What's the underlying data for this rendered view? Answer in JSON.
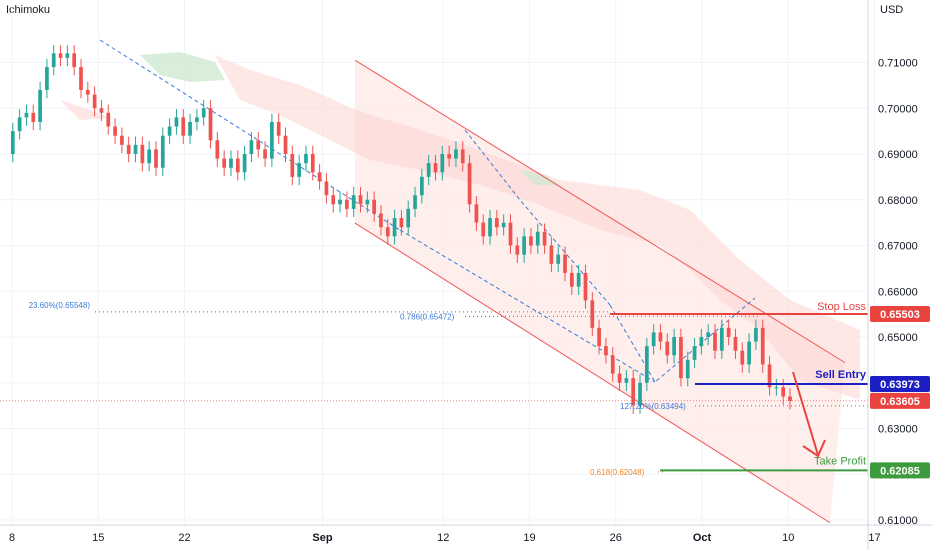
{
  "header": {
    "indicator": "Ichimoku",
    "currency": "USD"
  },
  "chart_data": {
    "type": "candlestick",
    "instrument_note": "",
    "y_axis": {
      "min": 0.605,
      "max": 0.714,
      "ticks": [
        0.61,
        0.62,
        0.63,
        0.64,
        0.65,
        0.66,
        0.67,
        0.68,
        0.69,
        0.7,
        0.71
      ],
      "tick_labels": [
        "0.61000",
        "0.62000",
        "0.63000",
        "0.64000",
        "0.65000",
        "0.66000",
        "0.67000",
        "0.68000",
        "0.69000",
        "0.70000",
        "0.71000"
      ]
    },
    "x_axis": {
      "ticks": [
        {
          "label": "8",
          "index": 0,
          "bold": false
        },
        {
          "label": "15",
          "index": 5,
          "bold": false
        },
        {
          "label": "22",
          "index": 10,
          "bold": false
        },
        {
          "label": "Sep",
          "index": 18,
          "bold": true
        },
        {
          "label": "12",
          "index": 25,
          "bold": false
        },
        {
          "label": "19",
          "index": 30,
          "bold": false
        },
        {
          "label": "26",
          "index": 35,
          "bold": false
        },
        {
          "label": "Oct",
          "index": 40,
          "bold": true
        },
        {
          "label": "10",
          "index": 45,
          "bold": false
        },
        {
          "label": "17",
          "index": 50,
          "bold": false
        }
      ]
    },
    "price_path": [
      0.69,
      0.695,
      0.698,
      0.699,
      0.697,
      0.704,
      0.709,
      0.712,
      0.711,
      0.712,
      0.709,
      0.704,
      0.703,
      0.7,
      0.699,
      0.696,
      0.694,
      0.692,
      0.69,
      0.692,
      0.688,
      0.691,
      0.687,
      0.694,
      0.696,
      0.698,
      0.694,
      0.697,
      0.698,
      0.7,
      0.693,
      0.689,
      0.687,
      0.689,
      0.686,
      0.69,
      0.693,
      0.691,
      0.689,
      0.697,
      0.694,
      0.69,
      0.685,
      0.688,
      0.69,
      0.686,
      0.684,
      0.681,
      0.679,
      0.68,
      0.678,
      0.681,
      0.679,
      0.68,
      0.677,
      0.674,
      0.672,
      0.676,
      0.674,
      0.678,
      0.681,
      0.685,
      0.688,
      0.686,
      0.69,
      0.689,
      0.691,
      0.688,
      0.679,
      0.675,
      0.672,
      0.676,
      0.674,
      0.675,
      0.67,
      0.668,
      0.672,
      0.67,
      0.673,
      0.67,
      0.666,
      0.668,
      0.664,
      0.661,
      0.664,
      0.658,
      0.652,
      0.648,
      0.646,
      0.642,
      0.64,
      0.641,
      0.635,
      0.64,
      0.648,
      0.651,
      0.649,
      0.646,
      0.65,
      0.641,
      0.645,
      0.648,
      0.65,
      0.651,
      0.647,
      0.652,
      0.65,
      0.647,
      0.644,
      0.649,
      0.652,
      0.644,
      0.639,
      0.639,
      0.637,
      0.636
    ],
    "channel": {
      "upper": [
        [
          27,
          0.7105
        ],
        [
          52,
          0.6444
        ]
      ],
      "lower": [
        [
          27,
          0.6749
        ],
        [
          52,
          0.6094
        ]
      ]
    },
    "horizontal_levels": [
      {
        "name": "Stop Loss",
        "value": 0.65503,
        "label": "0.65503",
        "color": "#e8433f"
      },
      {
        "name": "Sell Entry",
        "value": 0.63973,
        "label": "0.63973",
        "color": "#1c1fc4"
      },
      {
        "name": "Take Profit",
        "value": 0.62085,
        "label": "0.62085",
        "color": "#3d9a3d"
      },
      {
        "name": "",
        "value": 0.63605,
        "label": "0.63605",
        "color": "#e8433f"
      }
    ],
    "fib_labels": [
      {
        "text": "23.60%(0.65548)",
        "value": 0.65548,
        "color": "#3a7bd5"
      },
      {
        "text": "0.786(0.65472)",
        "value": 0.65472,
        "color": "#3a7bd5"
      },
      {
        "text": "127.20%(0.63494)",
        "value": 0.63494,
        "color": "#3a7bd5"
      },
      {
        "text": "0.618(0.62048)",
        "value": 0.62048,
        "color": "#f0882c"
      }
    ],
    "colors": {
      "up": "#26a69a",
      "down": "#ef5350",
      "channel": "#f05a5a",
      "channel_fill": "#fde7e4",
      "cloud_red": "#fbd5d2",
      "cloud_green": "#cfe8d2",
      "grid": "#f0f3fa",
      "dashed_blue": "#3a7bd5"
    }
  }
}
